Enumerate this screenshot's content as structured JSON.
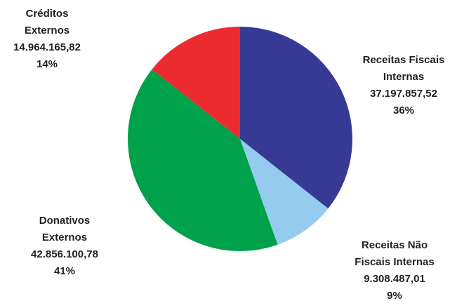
{
  "chart_data": {
    "type": "pie",
    "start_angle_deg": 0,
    "direction": "clockwise",
    "slices": [
      {
        "label_lines": [
          "Receitas Fiscais",
          "Internas"
        ],
        "value": 37197857.52,
        "value_text": "37.197.857,52",
        "percent_text": "36%",
        "color": "#363a94"
      },
      {
        "label_lines": [
          "Receitas Não",
          "Fiscais Internas"
        ],
        "value": 9308487.01,
        "value_text": "9.308.487,01",
        "percent_text": "9%",
        "color": "#94cbee"
      },
      {
        "label_lines": [
          "Donativos",
          "Externos"
        ],
        "value": 42856100.78,
        "value_text": "42.856.100,78",
        "percent_text": "41%",
        "color": "#00a14b"
      },
      {
        "label_lines": [
          "Créditos",
          "Externos"
        ],
        "value": 14964165.82,
        "value_text": "14.964.165,82",
        "percent_text": "14%",
        "color": "#ec2b31"
      }
    ]
  }
}
